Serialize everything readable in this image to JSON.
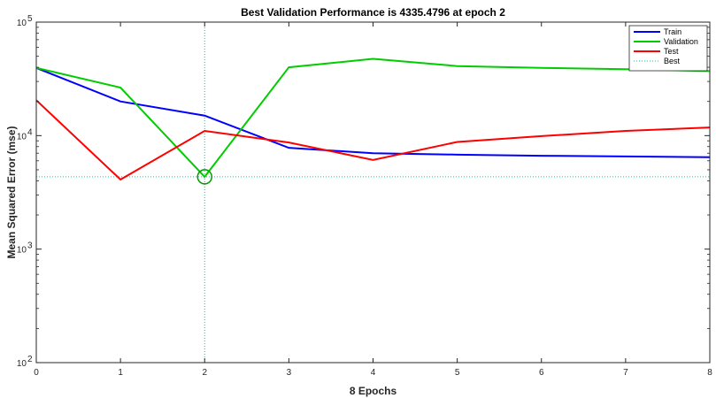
{
  "chart_data": {
    "type": "line",
    "title": "Best Validation Performance is 4335.4796 at epoch 2",
    "xlabel": "8 Epochs",
    "ylabel": "Mean Squared Error  (mse)",
    "xlim": [
      0,
      8
    ],
    "ylim": [
      100,
      100000
    ],
    "yscale": "log",
    "x": [
      0,
      1,
      2,
      3,
      4,
      5,
      6,
      7,
      8
    ],
    "x_tick_labels": [
      "0",
      "1",
      "2",
      "3",
      "4",
      "5",
      "6",
      "7",
      "8"
    ],
    "y_ticks": [
      {
        "value": 100,
        "base": "10",
        "exp": "2"
      },
      {
        "value": 1000,
        "base": "10",
        "exp": "3"
      },
      {
        "value": 10000,
        "base": "10",
        "exp": "4"
      },
      {
        "value": 100000,
        "base": "10",
        "exp": "5"
      }
    ],
    "series": [
      {
        "name": "Train",
        "color": "#0000ff",
        "values": [
          39500,
          20000,
          15000,
          7800,
          7000,
          6800,
          6650,
          6550,
          6450
        ]
      },
      {
        "name": "Validation",
        "color": "#00cc00",
        "values": [
          39500,
          26500,
          4335.4796,
          40000,
          47500,
          41000,
          39500,
          38500,
          37000
        ]
      },
      {
        "name": "Test",
        "color": "#ff0000",
        "values": [
          20500,
          4100,
          11000,
          8700,
          6100,
          8800,
          9900,
          11000,
          11800
        ]
      }
    ],
    "best": {
      "name": "Best",
      "color": "#00cc99",
      "epoch": 2,
      "value": 4335.4796
    },
    "grid": false,
    "legend_position": "top-right"
  }
}
